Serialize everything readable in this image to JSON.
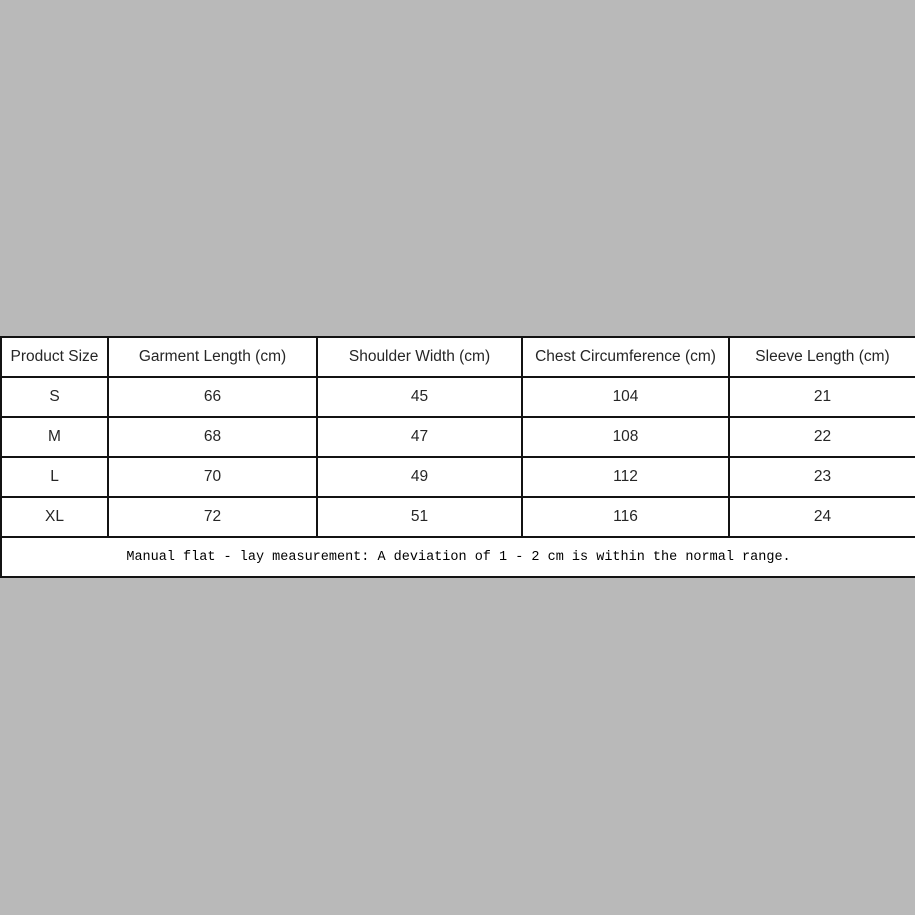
{
  "page": {
    "background_color": "#b9b9b9",
    "table_border_color": "#131313"
  },
  "chart_data": {
    "type": "table",
    "title": "",
    "columns": [
      "Product Size",
      "Garment Length (cm)",
      "Shoulder Width (cm)",
      "Chest Circumference (cm)",
      "Sleeve Length (cm)"
    ],
    "rows": [
      [
        "S",
        "66",
        "45",
        "104",
        "21"
      ],
      [
        "M",
        "68",
        "47",
        "108",
        "22"
      ],
      [
        "L",
        "70",
        "49",
        "112",
        "23"
      ],
      [
        "XL",
        "72",
        "51",
        "116",
        "24"
      ]
    ],
    "note": "Manual flat - lay measurement: A deviation of 1 - 2 cm is within the normal range."
  }
}
